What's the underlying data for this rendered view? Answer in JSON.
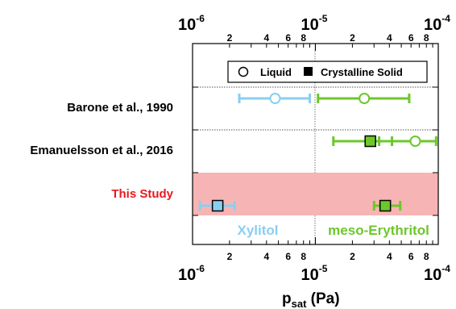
{
  "chart_data": {
    "type": "scatter",
    "x_scale": "log",
    "xlim": [
      1e-06,
      0.0001
    ],
    "major_ticks": [
      {
        "value": 1e-06,
        "base": "10",
        "exp": "-6"
      },
      {
        "value": 1e-05,
        "base": "10",
        "exp": "-5"
      },
      {
        "value": 0.0001,
        "base": "10",
        "exp": "-4"
      }
    ],
    "minor_tick_labels": [
      {
        "value": 2e-06,
        "label": "2"
      },
      {
        "value": 4e-06,
        "label": "4"
      },
      {
        "value": 6e-06,
        "label": "6"
      },
      {
        "value": 8e-06,
        "label": "8"
      },
      {
        "value": 2e-05,
        "label": "2"
      },
      {
        "value": 4e-05,
        "label": "4"
      },
      {
        "value": 6e-05,
        "label": "6"
      },
      {
        "value": 8e-05,
        "label": "8"
      }
    ],
    "xlabel": {
      "main": "p",
      "sub": "sat",
      "unit": " (Pa)"
    },
    "rows": [
      {
        "label": "Barone et al., 1990",
        "color": "#000000",
        "highlight": false
      },
      {
        "label": "Emanuelsson et al., 2016",
        "color": "#000000",
        "highlight": false
      },
      {
        "label": "This Study",
        "color": "#e8191f",
        "highlight": true
      }
    ],
    "highlight_color": "#f7b4b4",
    "legend": {
      "position": "top-right",
      "entries": [
        {
          "marker": "circle-open",
          "label": "Liquid"
        },
        {
          "marker": "square-filled",
          "label": "Crystalline Solid"
        }
      ]
    },
    "series": [
      {
        "name": "Xylitol",
        "color": "#89cff0",
        "points": [
          {
            "row": 0,
            "phase": "liquid",
            "value": 4.7e-06,
            "err_low": 2.4e-06,
            "err_high": 9e-06
          },
          {
            "row": 2,
            "phase": "solid",
            "value": 1.6e-06,
            "err_low": 1.15e-06,
            "err_high": 2.2e-06
          }
        ]
      },
      {
        "name": "meso-Erythritol",
        "color": "#6cc82a",
        "points": [
          {
            "row": 0,
            "phase": "liquid",
            "value": 2.5e-05,
            "err_low": 1.05e-05,
            "err_high": 5.8e-05
          },
          {
            "row": 1,
            "phase": "liquid",
            "value": 6.5e-05,
            "err_low": 3.3e-05,
            "err_high": 9.6e-05
          },
          {
            "row": 1,
            "phase": "solid",
            "value": 2.8e-05,
            "err_low": 1.4e-05,
            "err_high": 4.2e-05
          },
          {
            "row": 2,
            "phase": "solid",
            "value": 3.7e-05,
            "err_low": 3e-05,
            "err_high": 4.9e-05
          }
        ]
      }
    ]
  }
}
